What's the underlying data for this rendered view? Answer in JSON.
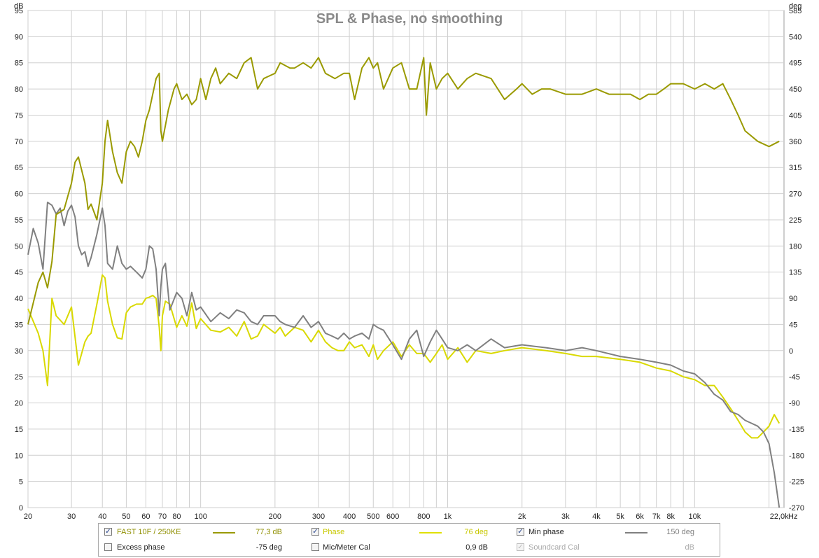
{
  "chart_data": {
    "type": "line",
    "title": "SPL & Phase, no smoothing",
    "x_scale": "log",
    "xlim": [
      20,
      23000
    ],
    "x_unit": "Hz",
    "x_ticks": [
      {
        "v": 20,
        "l": "20"
      },
      {
        "v": 30,
        "l": "30"
      },
      {
        "v": 40,
        "l": "40"
      },
      {
        "v": 50,
        "l": "50"
      },
      {
        "v": 60,
        "l": "60"
      },
      {
        "v": 70,
        "l": "70"
      },
      {
        "v": 80,
        "l": "80"
      },
      {
        "v": 100,
        "l": "100"
      },
      {
        "v": 200,
        "l": "200"
      },
      {
        "v": 300,
        "l": "300"
      },
      {
        "v": 400,
        "l": "400"
      },
      {
        "v": 500,
        "l": "500"
      },
      {
        "v": 600,
        "l": "600"
      },
      {
        "v": 800,
        "l": "800"
      },
      {
        "v": 1000,
        "l": "1k"
      },
      {
        "v": 2000,
        "l": "2k"
      },
      {
        "v": 3000,
        "l": "3k"
      },
      {
        "v": 4000,
        "l": "4k"
      },
      {
        "v": 5000,
        "l": "5k"
      },
      {
        "v": 6000,
        "l": "6k"
      },
      {
        "v": 7000,
        "l": "7k"
      },
      {
        "v": 8000,
        "l": "8k"
      },
      {
        "v": 10000,
        "l": "10k"
      },
      {
        "v": 22000,
        "l": "22,0k"
      }
    ],
    "y_left": {
      "unit": "dB",
      "range": [
        0,
        95
      ],
      "ticks": [
        0,
        5,
        10,
        15,
        20,
        25,
        30,
        35,
        40,
        45,
        50,
        55,
        60,
        65,
        70,
        75,
        80,
        85,
        90,
        95
      ]
    },
    "y_right": {
      "unit": "deg",
      "range": [
        -270,
        585
      ],
      "ticks": [
        -270,
        -225,
        -180,
        -135,
        -90,
        -45,
        0,
        45,
        90,
        135,
        180,
        225,
        270,
        315,
        360,
        405,
        450,
        495,
        540,
        585
      ]
    },
    "grid": true,
    "legend_position": "bottom",
    "series": [
      {
        "name": "FAST 10F / 250KE",
        "axis": "left",
        "color": "#9a9a00",
        "x": [
          20,
          22,
          23,
          24,
          25,
          26,
          28,
          30,
          31,
          32,
          34,
          35,
          36,
          38,
          40,
          41,
          42,
          44,
          46,
          48,
          50,
          52,
          54,
          56,
          58,
          60,
          62,
          64,
          66,
          68,
          69,
          70,
          74,
          78,
          80,
          84,
          88,
          92,
          96,
          100,
          105,
          110,
          115,
          120,
          130,
          140,
          150,
          160,
          170,
          180,
          200,
          210,
          230,
          240,
          260,
          280,
          300,
          320,
          350,
          380,
          400,
          420,
          450,
          480,
          500,
          520,
          550,
          600,
          650,
          700,
          750,
          800,
          820,
          850,
          900,
          950,
          1000,
          1100,
          1200,
          1300,
          1500,
          1700,
          1900,
          2000,
          2200,
          2400,
          2600,
          3000,
          3500,
          4000,
          4500,
          5000,
          5500,
          6000,
          6500,
          7000,
          7500,
          8000,
          9000,
          10000,
          11000,
          12000,
          13000,
          14000,
          15000,
          16000,
          18000,
          20000,
          22000
        ],
        "y": [
          35,
          43,
          45,
          42,
          47,
          56,
          57,
          62,
          66,
          67,
          62,
          57,
          58,
          55,
          62,
          70,
          74,
          68,
          64,
          62,
          68,
          70,
          69,
          67,
          70,
          74,
          76,
          79,
          82,
          83,
          72,
          70,
          76,
          80,
          81,
          78,
          79,
          77,
          78,
          82,
          78,
          82,
          84,
          81,
          83,
          82,
          85,
          86,
          80,
          82,
          83,
          85,
          84,
          84,
          85,
          84,
          86,
          83,
          82,
          83,
          83,
          78,
          84,
          86,
          84,
          85,
          80,
          84,
          85,
          80,
          80,
          86,
          75,
          85,
          80,
          82,
          83,
          80,
          82,
          83,
          82,
          78,
          80,
          81,
          79,
          80,
          80,
          79,
          79,
          80,
          79,
          79,
          79,
          78,
          79,
          79,
          80,
          81,
          81,
          80,
          81,
          80,
          81,
          78,
          75,
          72,
          70,
          69,
          70
        ]
      },
      {
        "name": "Phase",
        "axis": "right",
        "color": "#d9d900",
        "x": [
          20,
          22,
          23,
          24,
          25,
          26,
          28,
          30,
          32,
          34,
          35,
          36,
          38,
          40,
          41,
          42,
          44,
          46,
          48,
          50,
          52,
          55,
          58,
          60,
          62,
          64,
          66,
          68,
          69,
          70,
          72,
          75,
          80,
          84,
          88,
          92,
          96,
          100,
          110,
          120,
          130,
          140,
          150,
          160,
          170,
          180,
          200,
          210,
          220,
          240,
          260,
          280,
          300,
          320,
          340,
          360,
          380,
          400,
          420,
          450,
          480,
          500,
          520,
          550,
          600,
          650,
          700,
          750,
          800,
          850,
          900,
          950,
          1000,
          1100,
          1200,
          1300,
          1500,
          1700,
          2000,
          2500,
          3000,
          3500,
          4000,
          5000,
          6000,
          7000,
          8000,
          9000,
          10000,
          11000,
          12000,
          13000,
          14000,
          15000,
          16000,
          17000,
          18000,
          19000,
          20000,
          21000,
          22000
        ],
        "y": [
          72,
          30,
          0,
          -60,
          90,
          60,
          45,
          75,
          -25,
          15,
          25,
          30,
          80,
          130,
          125,
          85,
          45,
          22,
          20,
          65,
          75,
          80,
          80,
          90,
          92,
          95,
          90,
          40,
          0,
          60,
          85,
          80,
          40,
          60,
          42,
          82,
          38,
          55,
          35,
          32,
          40,
          25,
          50,
          20,
          25,
          45,
          30,
          40,
          25,
          40,
          35,
          15,
          35,
          15,
          5,
          0,
          0,
          15,
          5,
          10,
          -10,
          10,
          -15,
          0,
          15,
          -10,
          10,
          -5,
          -5,
          -20,
          -5,
          10,
          -15,
          5,
          -20,
          0,
          -5,
          0,
          5,
          0,
          -5,
          -10,
          -10,
          -15,
          -20,
          -30,
          -35,
          -45,
          -50,
          -60,
          -60,
          -80,
          -100,
          -120,
          -140,
          -150,
          -150,
          -140,
          -130,
          -110,
          -125
        ]
      },
      {
        "name": "Min phase",
        "axis": "right",
        "color": "#808080",
        "x": [
          20,
          21,
          22,
          23,
          24,
          25,
          26,
          27,
          28,
          29,
          30,
          31,
          32,
          33,
          34,
          35,
          36,
          38,
          40,
          41,
          42,
          44,
          46,
          48,
          50,
          52,
          55,
          58,
          60,
          62,
          64,
          66,
          68,
          69,
          70,
          72,
          75,
          80,
          84,
          88,
          92,
          96,
          100,
          110,
          120,
          130,
          140,
          150,
          160,
          170,
          180,
          200,
          210,
          220,
          240,
          260,
          280,
          300,
          320,
          340,
          360,
          380,
          400,
          420,
          450,
          480,
          500,
          520,
          550,
          600,
          650,
          700,
          750,
          800,
          850,
          900,
          950,
          1000,
          1100,
          1200,
          1300,
          1500,
          1700,
          2000,
          2500,
          3000,
          3500,
          4000,
          5000,
          6000,
          7000,
          8000,
          9000,
          10000,
          11000,
          12000,
          13000,
          14000,
          15000,
          16000,
          17000,
          18000,
          19000,
          20000,
          21000,
          22000
        ],
        "y": [
          165,
          210,
          185,
          140,
          255,
          250,
          235,
          245,
          215,
          240,
          250,
          230,
          180,
          165,
          170,
          145,
          160,
          200,
          245,
          215,
          150,
          140,
          180,
          150,
          140,
          145,
          135,
          125,
          140,
          180,
          175,
          140,
          60,
          110,
          140,
          150,
          70,
          100,
          90,
          60,
          100,
          70,
          75,
          50,
          65,
          55,
          70,
          65,
          50,
          45,
          60,
          60,
          50,
          45,
          40,
          60,
          40,
          50,
          30,
          25,
          20,
          30,
          20,
          25,
          30,
          20,
          45,
          40,
          35,
          10,
          -15,
          20,
          35,
          -10,
          15,
          35,
          20,
          5,
          0,
          10,
          0,
          20,
          5,
          10,
          5,
          0,
          5,
          0,
          -10,
          -15,
          -20,
          -25,
          -35,
          -40,
          -55,
          -75,
          -85,
          -105,
          -110,
          -120,
          -125,
          -130,
          -140,
          -160,
          -210,
          -270
        ]
      }
    ]
  },
  "legend": {
    "row1": [
      {
        "checked": true,
        "label": "FAST 10F / 250KE",
        "value": "77,3 dB",
        "color": "#9a9a00"
      },
      {
        "checked": true,
        "label": "Phase",
        "value": "76 deg",
        "color": "#d9d900"
      },
      {
        "checked": true,
        "label": "Min phase",
        "value": "150 deg",
        "color": "#808080"
      }
    ],
    "row2": [
      {
        "checked": false,
        "label": "Excess phase",
        "value": "-75 deg"
      },
      {
        "checked": false,
        "label": "Mic/Meter Cal",
        "value": "0,9 dB"
      },
      {
        "checked": true,
        "label": "Soundcard Cal",
        "value": "dB"
      }
    ]
  }
}
